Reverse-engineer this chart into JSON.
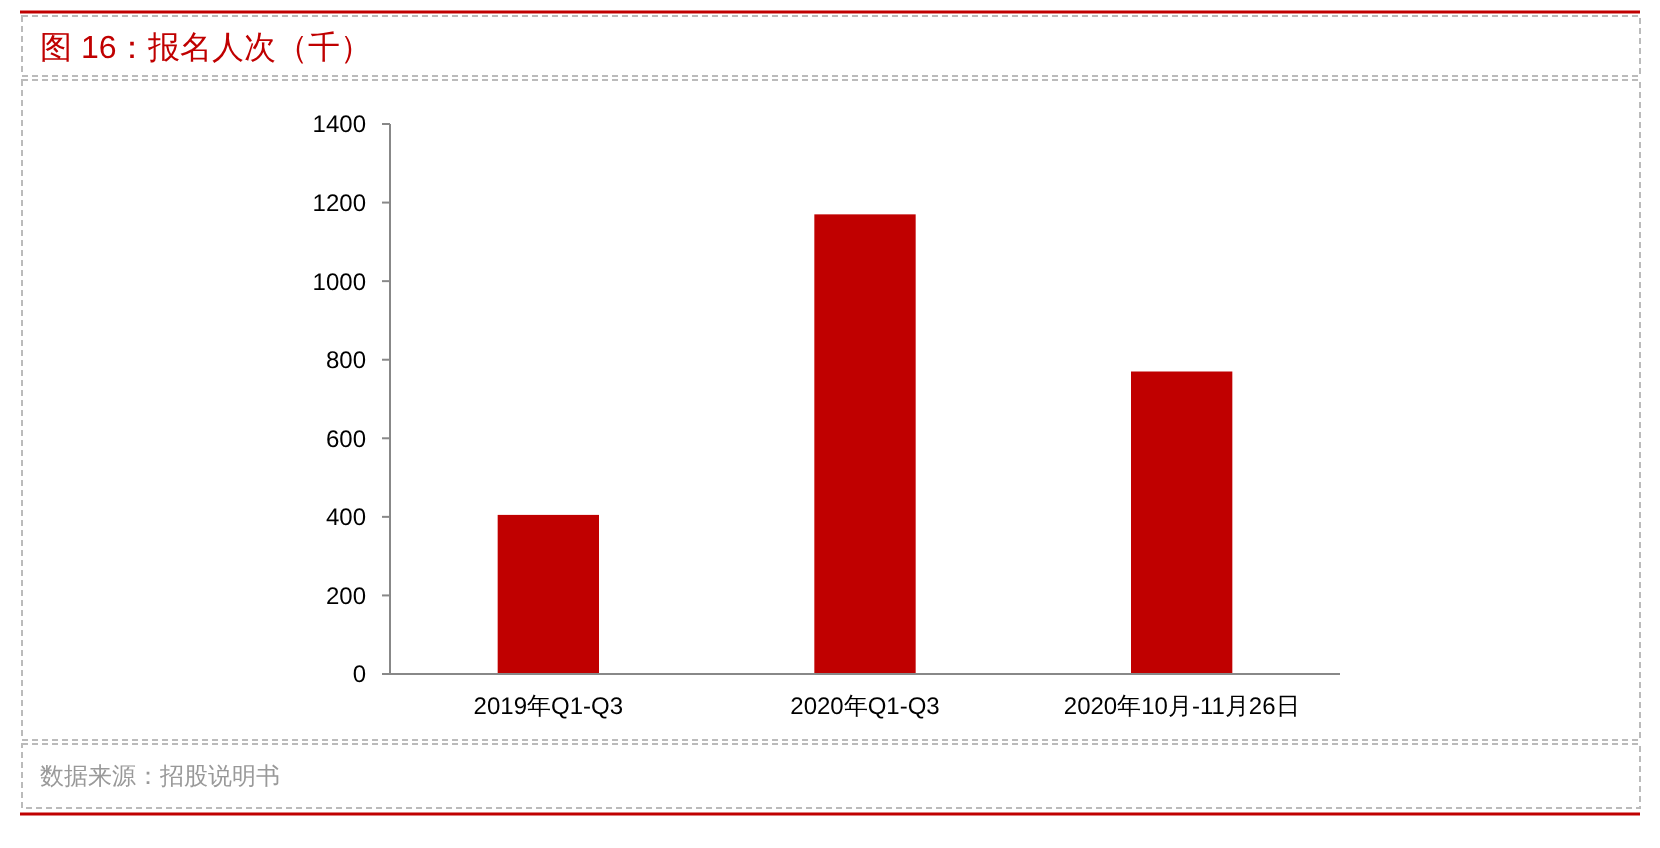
{
  "chart_data": {
    "type": "bar",
    "title": "图 16：报名人次（千）",
    "categories": [
      "2019年Q1-Q3",
      "2020年Q1-Q3",
      "2020年10月-11月26日"
    ],
    "values": [
      405,
      1170,
      770
    ],
    "color": "#c00000",
    "ylim": [
      0,
      1400
    ],
    "yticks": [
      0,
      200,
      400,
      600,
      800,
      1000,
      1200,
      1400
    ],
    "grid": false,
    "annotations": [
      "数据来源：招股说明书"
    ]
  }
}
